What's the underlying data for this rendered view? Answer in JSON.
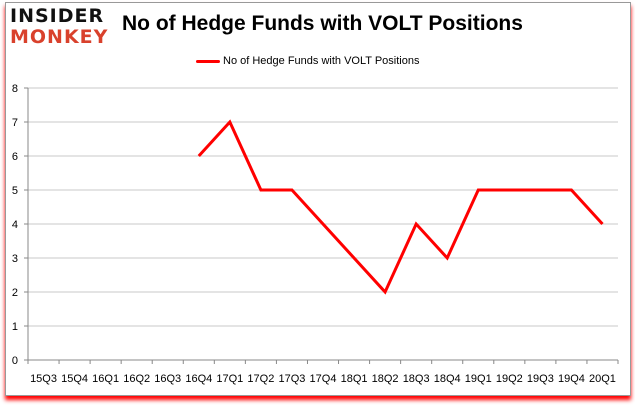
{
  "logo": {
    "line1": "INSIDER",
    "line2": "MONKEY"
  },
  "chart_data": {
    "type": "line",
    "title": "No of Hedge Funds with VOLT Positions",
    "xlabel": "",
    "ylabel": "",
    "categories": [
      "15Q3",
      "15Q4",
      "16Q1",
      "16Q2",
      "16Q3",
      "16Q4",
      "17Q1",
      "17Q2",
      "17Q3",
      "17Q4",
      "18Q1",
      "18Q2",
      "18Q3",
      "18Q4",
      "19Q1",
      "19Q2",
      "19Q3",
      "19Q4",
      "20Q1"
    ],
    "series": [
      {
        "name": "No of Hedge Funds with VOLT Positions",
        "color": "#ff0000",
        "values": [
          null,
          null,
          null,
          null,
          null,
          6,
          7,
          5,
          5,
          4,
          3,
          2,
          4,
          3,
          5,
          5,
          5,
          5,
          4
        ]
      }
    ],
    "ylim": [
      0,
      8
    ],
    "yticks": [
      0,
      1,
      2,
      3,
      4,
      5,
      6,
      7,
      8
    ],
    "grid": true,
    "legend": "top-center"
  }
}
